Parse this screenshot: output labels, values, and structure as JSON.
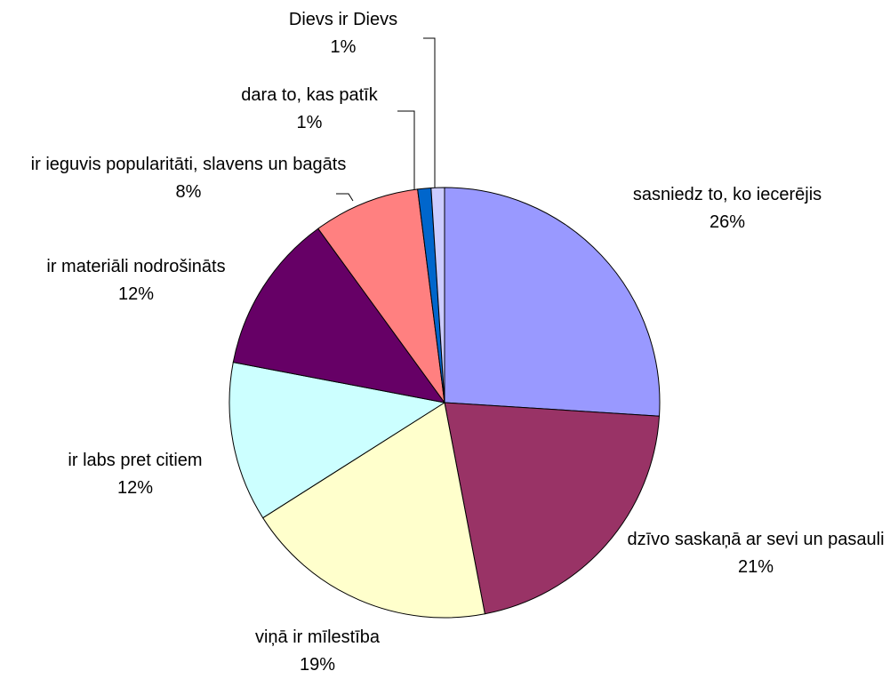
{
  "chart_data": {
    "type": "pie",
    "categories": [
      "sasniedz to, ko iecerējis",
      "dzīvo saskaņā ar sevi un pasauli",
      "viņā ir mīlestība",
      "ir labs pret citiem",
      "ir materiāli nodrošināts",
      "ir ieguvis popularitāti, slavens un bagāts",
      "dara to, kas patīk",
      "Dievs ir Dievs"
    ],
    "values": [
      26,
      21,
      19,
      12,
      12,
      8,
      1,
      1
    ],
    "value_labels": [
      "26%",
      "21%",
      "19%",
      "12%",
      "12%",
      "8%",
      "1%",
      "1%"
    ],
    "colors": [
      "#9999ff",
      "#993366",
      "#ffffcc",
      "#ccffff",
      "#660066",
      "#ff8080",
      "#0066cc",
      "#ccccff"
    ]
  }
}
